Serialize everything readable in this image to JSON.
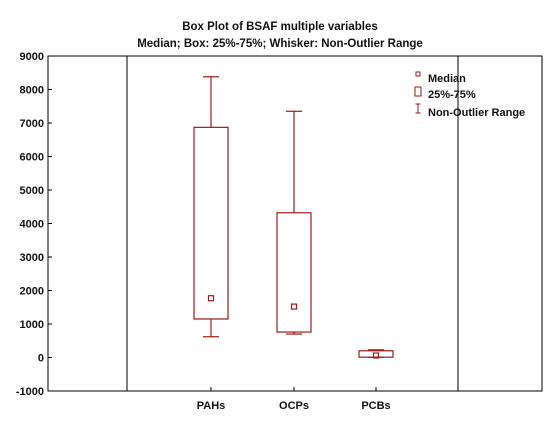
{
  "chart_data": {
    "type": "box",
    "title": "Box Plot of BSAF multiple variables",
    "subtitle": "Median; Box: 25%-75%; Whisker: Non-Outlier Range",
    "categories": [
      "PAHs",
      "OCPs",
      "PCBs"
    ],
    "boxes": [
      {
        "category": "PAHs",
        "median": 1770,
        "q1": 1150,
        "q3": 6870,
        "whisker_low": 620,
        "whisker_high": 8380
      },
      {
        "category": "OCPs",
        "median": 1520,
        "q1": 760,
        "q3": 4320,
        "whisker_low": 700,
        "whisker_high": 7350
      },
      {
        "category": "PCBs",
        "median": 60,
        "q1": 10,
        "q3": 200,
        "whisker_low": 5,
        "whisker_high": 230
      }
    ],
    "yticks": [
      -1000,
      0,
      1000,
      2000,
      3000,
      4000,
      5000,
      6000,
      7000,
      8000,
      9000
    ],
    "ylim": [
      -1000,
      9000
    ],
    "legend": {
      "position": "top-right",
      "entries": [
        "Median",
        "25%-75%",
        "Non-Outlier Range"
      ]
    },
    "grid": false,
    "colors": {
      "box": "#9b1b1b",
      "axis": "#000000",
      "background": "#ffffff"
    }
  }
}
